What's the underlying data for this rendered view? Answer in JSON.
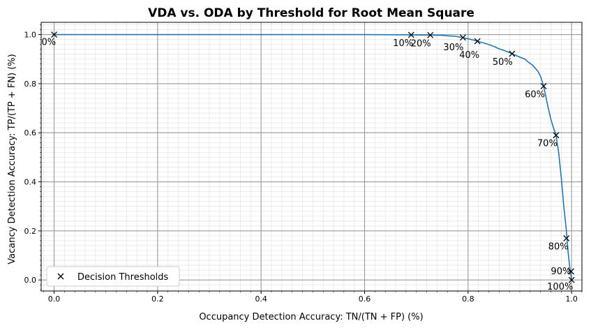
{
  "chart_data": {
    "type": "line",
    "title": "VDA vs. ODA by Threshold for Root Mean Square",
    "xlabel": "Occupancy Detection Accuracy: TN/(TN + FP) (%)",
    "ylabel": "Vacancy Detection Accuracy: TP/(TP + FN) (%)",
    "xlim": [
      -0.025,
      1.02
    ],
    "ylim": [
      -0.045,
      1.05
    ],
    "x_ticks": [
      "0.0",
      "0.2",
      "0.4",
      "0.6",
      "0.8",
      "1.0"
    ],
    "y_ticks": [
      "0.0",
      "0.2",
      "0.4",
      "0.6",
      "0.8",
      "1.0"
    ],
    "grid": true,
    "line_color": "#1f77b4",
    "curve": {
      "x": [
        0.0,
        0.3,
        0.6,
        0.69,
        0.727,
        0.75,
        0.76,
        0.775,
        0.79,
        0.8,
        0.81,
        0.82,
        0.835,
        0.85,
        0.86,
        0.87,
        0.885,
        0.9,
        0.91,
        0.915,
        0.925,
        0.935,
        0.94,
        0.946,
        0.95,
        0.955,
        0.96,
        0.965,
        0.97,
        0.975,
        0.98,
        0.985,
        0.99,
        0.993,
        0.996,
        0.998,
        1.0
      ],
      "y": [
        1.0,
        1.0,
        1.0,
        0.999,
        0.998,
        0.997,
        0.995,
        0.993,
        0.988,
        0.983,
        0.978,
        0.972,
        0.963,
        0.952,
        0.942,
        0.935,
        0.922,
        0.908,
        0.9,
        0.89,
        0.875,
        0.85,
        0.83,
        0.79,
        0.75,
        0.7,
        0.655,
        0.62,
        0.59,
        0.52,
        0.42,
        0.3,
        0.2,
        0.12,
        0.06,
        0.03,
        0.0
      ]
    },
    "series": [
      {
        "name": "Decision Thresholds",
        "marker": "x",
        "points": [
          {
            "label": "0%",
            "x": 0.0,
            "y": 1.0
          },
          {
            "label": "10%",
            "x": 0.69,
            "y": 0.999
          },
          {
            "label": "20%",
            "x": 0.727,
            "y": 0.998
          },
          {
            "label": "30%",
            "x": 0.79,
            "y": 0.988
          },
          {
            "label": "40%",
            "x": 0.818,
            "y": 0.973
          },
          {
            "label": "50%",
            "x": 0.885,
            "y": 0.922
          },
          {
            "label": "60%",
            "x": 0.946,
            "y": 0.79
          },
          {
            "label": "70%",
            "x": 0.97,
            "y": 0.59
          },
          {
            "label": "80%",
            "x": 0.99,
            "y": 0.17
          },
          {
            "label": "90%",
            "x": 0.999,
            "y": 0.035
          },
          {
            "label": "100%",
            "x": 1.0,
            "y": 0.0
          }
        ]
      }
    ],
    "legend": {
      "position": "lower-left",
      "entries": [
        "Decision Thresholds"
      ]
    }
  }
}
